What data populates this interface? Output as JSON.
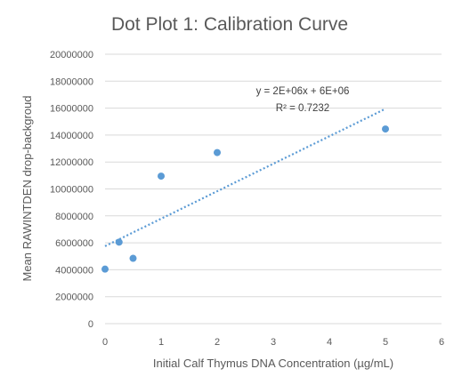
{
  "chart_data": {
    "type": "scatter",
    "title": "Dot Plot 1: Calibration Curve",
    "xlabel": "Initial Calf Thymus DNA Concentration (µg/mL)",
    "ylabel": "Mean RAWINTDEN drop-backgroud",
    "xlim": [
      0,
      6
    ],
    "ylim": [
      0,
      20000000
    ],
    "x_ticks": [
      "0",
      "1",
      "2",
      "3",
      "4",
      "5",
      "6"
    ],
    "y_ticks": [
      "0",
      "2000000",
      "4000000",
      "6000000",
      "8000000",
      "10000000",
      "12000000",
      "14000000",
      "16000000",
      "18000000",
      "20000000"
    ],
    "grid": "horizontal",
    "legend": "none",
    "points": [
      {
        "x": 0,
        "y": 4050000
      },
      {
        "x": 0.25,
        "y": 6050000
      },
      {
        "x": 0.5,
        "y": 4850000
      },
      {
        "x": 1,
        "y": 10950000
      },
      {
        "x": 2,
        "y": 12700000
      },
      {
        "x": 5,
        "y": 14450000
      }
    ],
    "trendline": {
      "type": "linear",
      "x_range": [
        0,
        5
      ],
      "y_start": 5750000,
      "y_end": 15950000,
      "equation": "y = 2E+06x + 6E+06",
      "r_squared": "R² = 0.7232"
    },
    "colors": {
      "series": "#5b9bd5",
      "grid": "#d9d9d9",
      "text": "#595959"
    }
  }
}
